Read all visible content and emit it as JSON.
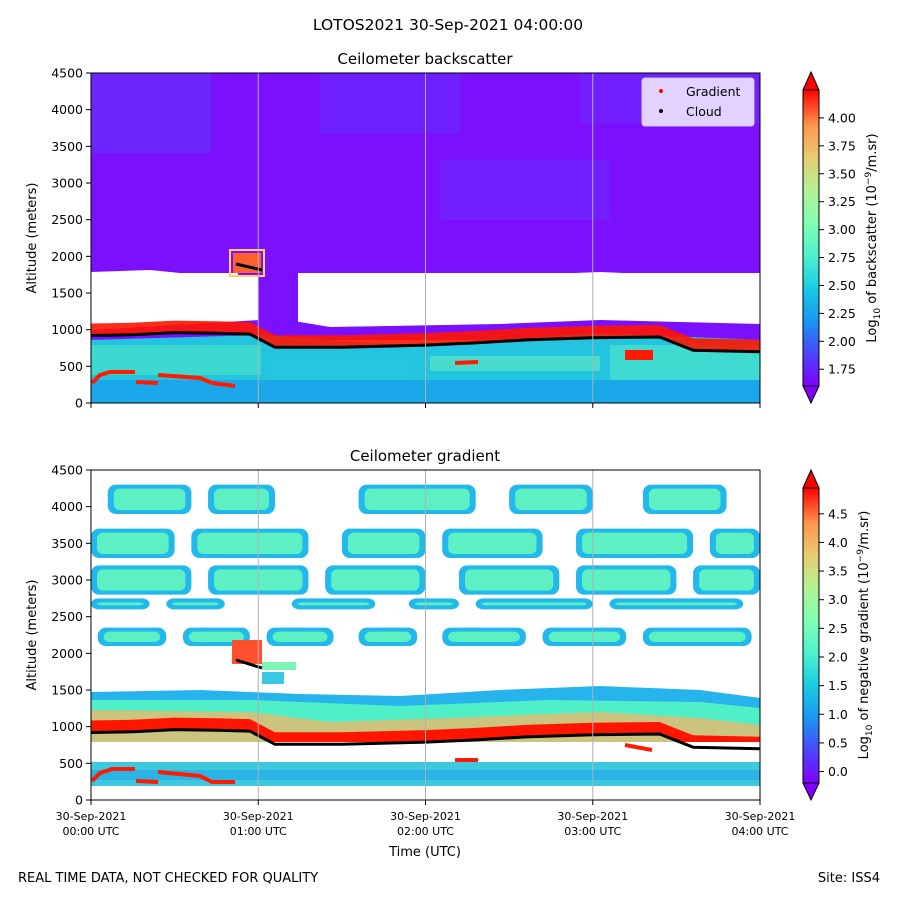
{
  "suptitle": "LOTOS2021 30-Sep-2021 04:00:00",
  "footer_left": "REAL TIME DATA, NOT CHECKED FOR QUALITY",
  "footer_right": "Site: ISS4",
  "chart_data": [
    {
      "type": "heatmap",
      "title": "Ceilometer backscatter",
      "ylabel": "Altitude (meters)",
      "xlabel": "",
      "ylim": [
        0,
        4500
      ],
      "yticks": [
        0,
        500,
        1000,
        1500,
        2000,
        2500,
        3000,
        3500,
        4000,
        4500
      ],
      "xlim_hours": [
        0,
        4
      ],
      "xticks_hours": [
        0,
        1,
        2,
        3,
        4
      ],
      "grid": "vertical at hourly ticks",
      "legend": {
        "placement": "top-right",
        "entries": [
          {
            "label": "Gradient",
            "color": "#ff0000"
          },
          {
            "label": "Cloud",
            "color": "#000000"
          }
        ]
      },
      "colorbar": {
        "label": "Log10 of backscatter (10^-9/m.sr)",
        "label_main": "Log",
        "label_sub": "10",
        "label_mid": " of backscatter (10",
        "label_sup": "−9",
        "label_end": "/m.sr)",
        "min": 1.6,
        "max": 4.25,
        "ticks": [
          "1.75",
          "2.00",
          "2.25",
          "2.50",
          "2.75",
          "3.00",
          "3.25",
          "3.50",
          "3.75",
          "4.00"
        ],
        "extend": "both"
      },
      "cloud_base_m": [
        [
          0.0,
          920
        ],
        [
          0.25,
          930
        ],
        [
          0.5,
          960
        ],
        [
          0.75,
          950
        ],
        [
          0.95,
          940
        ],
        [
          1.1,
          760
        ],
        [
          1.5,
          760
        ],
        [
          2.0,
          790
        ],
        [
          2.3,
          820
        ],
        [
          2.6,
          860
        ],
        [
          3.0,
          890
        ],
        [
          3.4,
          900
        ],
        [
          3.6,
          720
        ],
        [
          4.0,
          700
        ]
      ],
      "features": {
        "clear_gap_m": [
          1100,
          1750
        ],
        "high_cloud_patch": {
          "time_h": [
            0.85,
            1.05
          ],
          "alt_m": [
            1750,
            2050
          ]
        }
      }
    },
    {
      "type": "heatmap",
      "title": "Ceilometer gradient",
      "ylabel": "Altitude (meters)",
      "xlabel": "Time (UTC)",
      "ylim": [
        0,
        4500
      ],
      "yticks": [
        0,
        500,
        1000,
        1500,
        2000,
        2500,
        3000,
        3500,
        4000,
        4500
      ],
      "xlim_hours": [
        0,
        4
      ],
      "xtick_labels": [
        {
          "date": "30-Sep-2021",
          "time": "00:00 UTC"
        },
        {
          "date": "30-Sep-2021",
          "time": "01:00 UTC"
        },
        {
          "date": "30-Sep-2021",
          "time": "02:00 UTC"
        },
        {
          "date": "30-Sep-2021",
          "time": "03:00 UTC"
        },
        {
          "date": "30-Sep-2021",
          "time": "04:00 UTC"
        }
      ],
      "grid": "vertical at hourly ticks",
      "colorbar": {
        "label": "Log10 of negative gradient (10^-9/m.sr)",
        "label_main": "Log",
        "label_sub": "10",
        "label_mid": " of negative gradient (10",
        "label_sup": "−9",
        "label_end": "/m.sr)",
        "min": -0.2,
        "max": 4.95,
        "ticks": [
          "0.0",
          "0.5",
          "1.0",
          "1.5",
          "2.0",
          "2.5",
          "3.0",
          "3.5",
          "4.0",
          "4.5"
        ],
        "extend": "both"
      },
      "cloud_base_m": [
        [
          0.0,
          920
        ],
        [
          0.25,
          930
        ],
        [
          0.5,
          960
        ],
        [
          0.75,
          950
        ],
        [
          0.95,
          940
        ],
        [
          1.1,
          760
        ],
        [
          1.5,
          760
        ],
        [
          2.0,
          790
        ],
        [
          2.3,
          820
        ],
        [
          2.6,
          860
        ],
        [
          3.0,
          890
        ],
        [
          3.4,
          900
        ],
        [
          3.6,
          720
        ],
        [
          4.0,
          700
        ]
      ],
      "features": {
        "boundary_layer_top_m": [
          900,
          1500
        ],
        "cloud_bands_m": [
          [
            2100,
            2350
          ],
          [
            2600,
            2750
          ],
          [
            2800,
            3200
          ],
          [
            3300,
            3700
          ],
          [
            3900,
            4300
          ]
        ]
      }
    }
  ]
}
